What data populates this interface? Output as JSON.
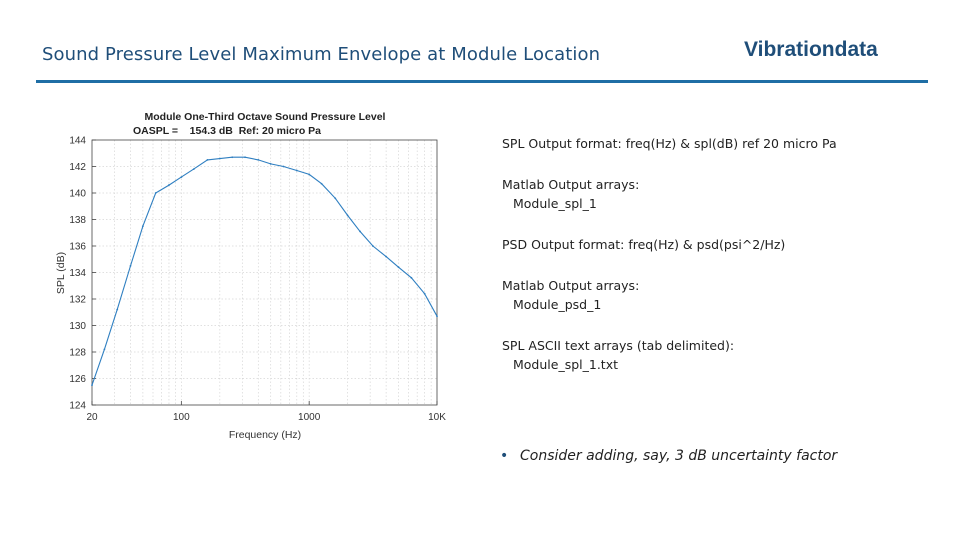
{
  "slide": {
    "title": "Sound Pressure Level Maximum Envelope at Module Location",
    "brand": "Vibrationdata"
  },
  "notes": {
    "spl_format": "SPL Output format:  freq(Hz) & spl(dB) ref 20 micro Pa",
    "matlab_spl_header": "Matlab Output arrays:",
    "matlab_spl_array": "Module_spl_1",
    "psd_format": "PSD Output format:  freq(Hz) & psd(psi^2/Hz)",
    "matlab_psd_header": "Matlab Output arrays:",
    "matlab_psd_array": "Module_psd_1",
    "ascii_header": "SPL ASCII text arrays (tab delimited):",
    "ascii_file": "Module_spl_1.txt",
    "bullet": "Consider adding, say, 3 dB uncertainty factor"
  },
  "chart_data": {
    "type": "line",
    "title": "Module  One-Third Octave Sound Pressure Level",
    "subtitle": "OASPL =    154.3 dB  Ref: 20 micro Pa",
    "xlabel": "Frequency (Hz)",
    "ylabel": "SPL (dB)",
    "xscale": "log",
    "xlim": [
      20,
      10000
    ],
    "ylim": [
      124,
      144
    ],
    "xticks": [
      20,
      100,
      1000,
      10000
    ],
    "xtick_labels": [
      "20",
      "100",
      "1000",
      "10K"
    ],
    "yticks": [
      124,
      126,
      128,
      130,
      132,
      134,
      136,
      138,
      140,
      142,
      144
    ],
    "grid": true,
    "line_color": "#2f7fc1",
    "series": [
      {
        "x": [
          20,
          25,
          31.5,
          40,
          50,
          63,
          80,
          100,
          125,
          160,
          200,
          250,
          315,
          400,
          500,
          630,
          800,
          1000,
          1250,
          1600,
          2000,
          2500,
          3150,
          4000,
          5000,
          6300,
          8000,
          10000
        ],
        "values": [
          125.5,
          128.2,
          131.2,
          134.5,
          137.5,
          140.0,
          140.6,
          141.2,
          141.8,
          142.5,
          142.6,
          142.7,
          142.7,
          142.5,
          142.2,
          142.0,
          141.7,
          141.4,
          140.7,
          139.6,
          138.3,
          137.1,
          136.0,
          135.2,
          134.4,
          133.6,
          132.4,
          130.7
        ]
      }
    ]
  }
}
